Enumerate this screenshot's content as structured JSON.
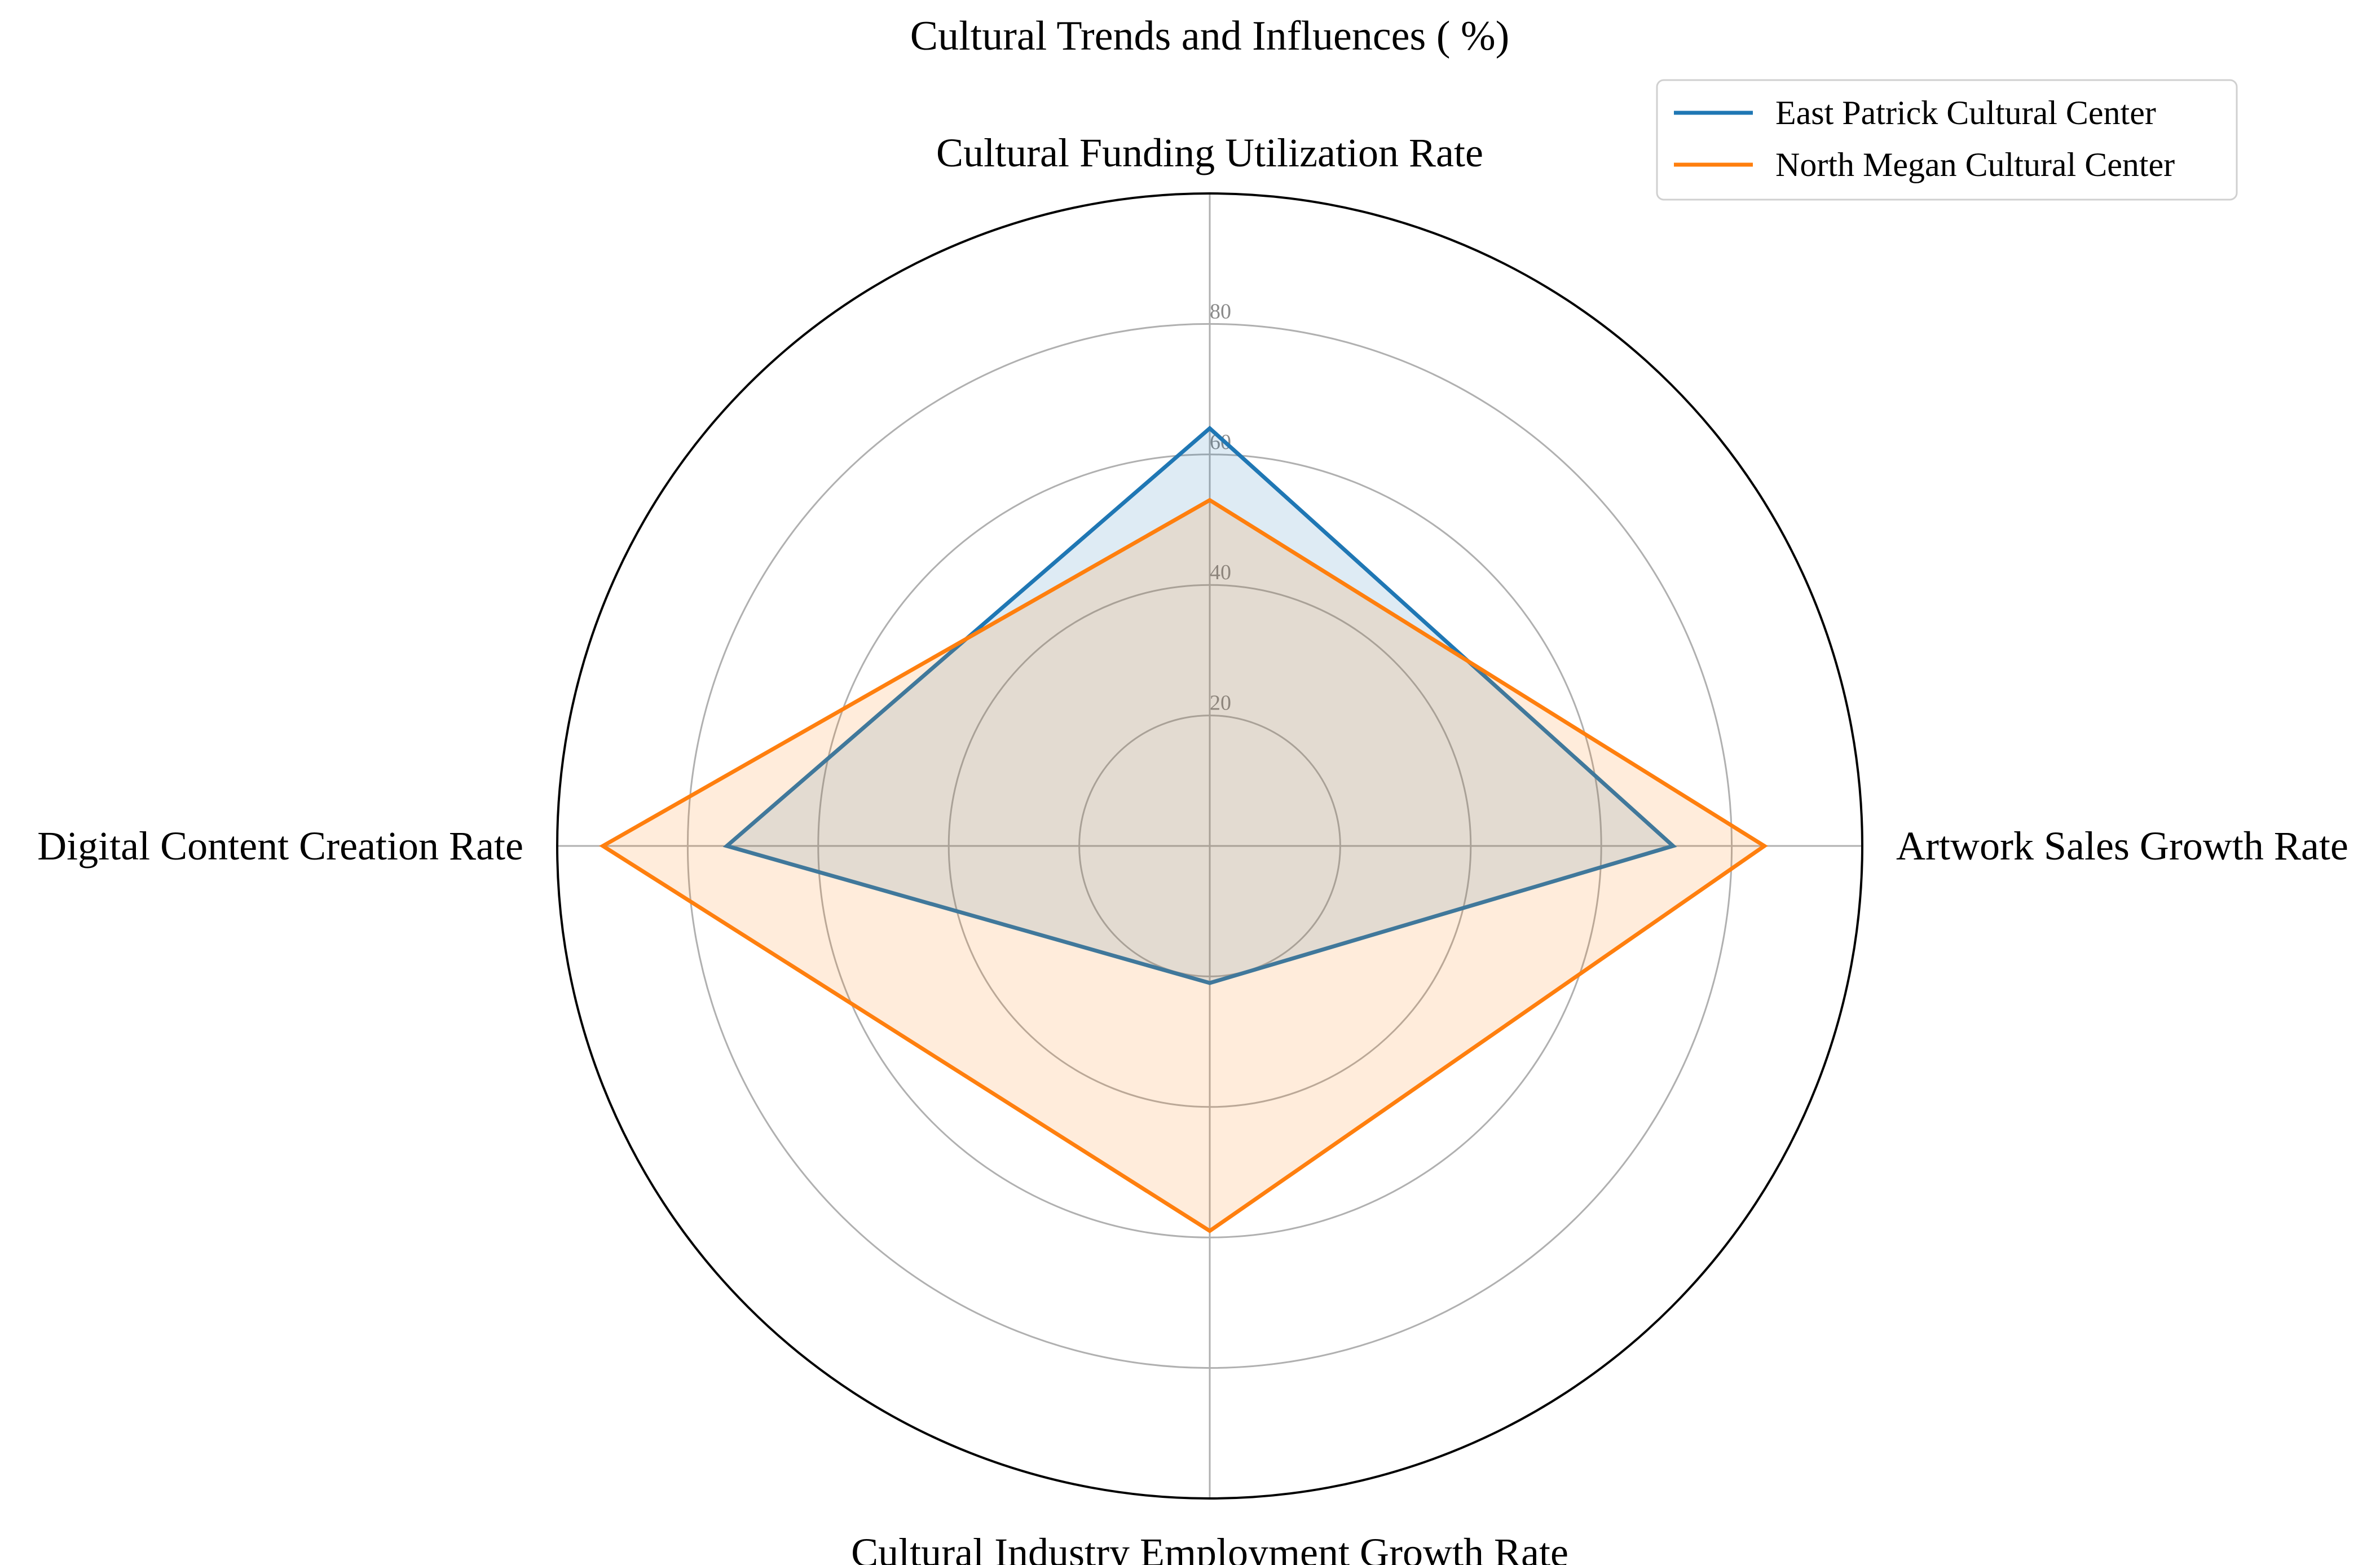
{
  "chart_data": {
    "type": "radar",
    "title": "Cultural Trends and Influences ( %)",
    "axes": [
      "Cultural Funding Utilization Rate",
      "Artwork Sales Growth Rate",
      "Cultural Industry Employment Growth Rate",
      "Digital Content Creation Rate"
    ],
    "r_ticks": [
      20,
      40,
      60,
      80
    ],
    "r_tick_labels": [
      "20",
      "40",
      "60",
      "80"
    ],
    "r_max": 100,
    "grid": true,
    "legend_position": "top-right",
    "series": [
      {
        "name": "East Patrick Cultural Center",
        "values": [
          64,
          71,
          21,
          74
        ],
        "color": "#1f77b4"
      },
      {
        "name": "North Megan Cultural Center",
        "values": [
          53,
          85,
          59,
          93
        ],
        "color": "#ff7f0e"
      }
    ]
  }
}
